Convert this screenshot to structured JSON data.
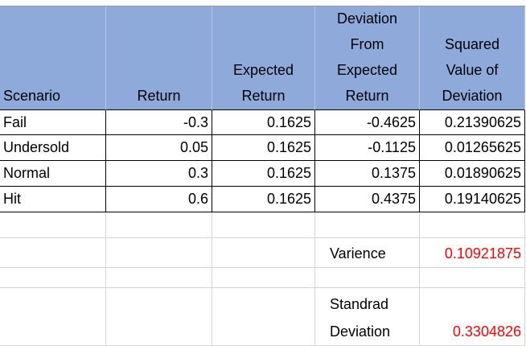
{
  "header": {
    "columns": [
      [
        "Scenario"
      ],
      [
        "Return"
      ],
      [
        "Expected",
        "Return"
      ],
      [
        "Deviation",
        "From",
        "Expected",
        "Return"
      ],
      [
        "Squared",
        "Value of",
        "Deviation"
      ]
    ]
  },
  "table": {
    "rows": [
      [
        "Fail",
        "-0.3",
        "0.1625",
        "-0.4625",
        "0.21390625"
      ],
      [
        "Undersold",
        "0.05",
        "0.1625",
        "-0.1125",
        "0.01265625"
      ],
      [
        "Normal",
        "0.3",
        "0.1625",
        "0.1375",
        "0.01890625"
      ],
      [
        "Hit",
        "0.6",
        "0.1625",
        "0.4375",
        "0.19140625"
      ]
    ]
  },
  "summary": {
    "variance": {
      "label": "Varience",
      "value": "0.10921875"
    },
    "std_dev": {
      "label": [
        "Standrad",
        "Deviation"
      ],
      "value": "0.3304826"
    }
  }
}
